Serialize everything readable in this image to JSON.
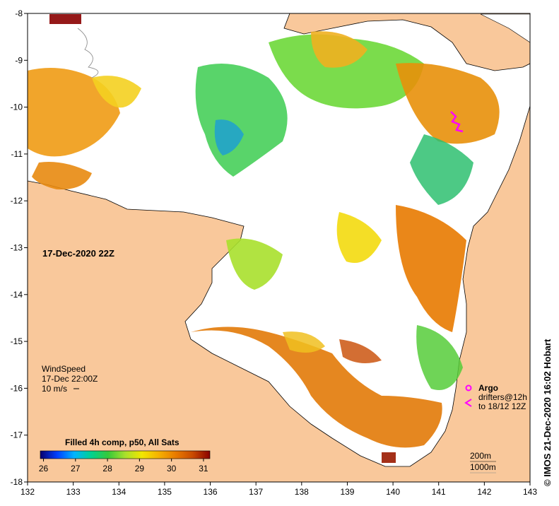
{
  "map": {
    "date_label": "17-Dec-2020 22Z",
    "x_ticks": [
      "132",
      "133",
      "134",
      "135",
      "136",
      "137",
      "138",
      "139",
      "140",
      "141",
      "142",
      "143"
    ],
    "y_ticks": [
      "-8",
      "-9",
      "-10",
      "-11",
      "-12",
      "-13",
      "-14",
      "-15",
      "-16",
      "-17",
      "-18"
    ],
    "colors": {
      "land": "#f9c89b",
      "no_data": "#ffffff",
      "coast": "#000000",
      "argo": "#ff00ff"
    }
  },
  "wind": {
    "title": "WindSpeed",
    "time": "17-Dec 22:00Z",
    "scale": "10 m/s"
  },
  "colorbar": {
    "title": "Filled 4h comp, p50, All Sats",
    "ticks": [
      "26",
      "27",
      "28",
      "29",
      "30",
      "31"
    ],
    "stops": [
      "#08006e",
      "#0040ff",
      "#00b4ff",
      "#00d290",
      "#36c93a",
      "#a8e02c",
      "#f2e600",
      "#f5b000",
      "#e87a00",
      "#c84a00",
      "#8a0000"
    ]
  },
  "legend": {
    "argo": "Argo",
    "drifters_line1": "drifters@12h",
    "drifters_line2": "to 18/12 12Z"
  },
  "isobaths": {
    "a": "200m",
    "b": "1000m"
  },
  "credit": "© IMOS 21-Dec-2020 16:02 Hobart"
}
